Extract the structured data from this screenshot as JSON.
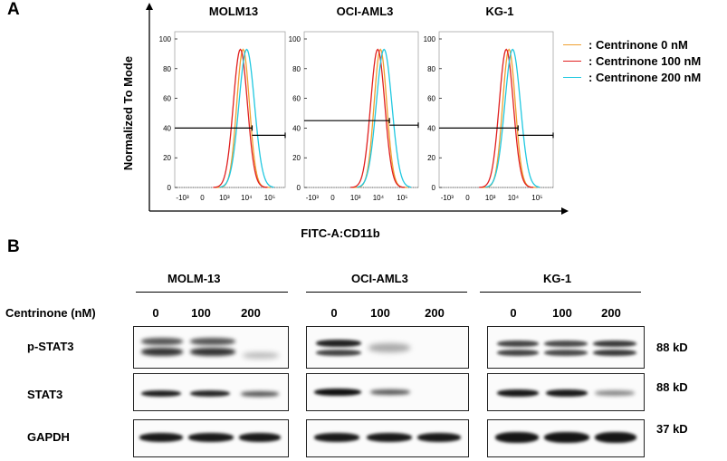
{
  "panel_a": {
    "letter": "A",
    "y_axis_label": "Normalized To Mode",
    "x_axis_label": "FITC-A:CD11b",
    "plots": [
      {
        "title": "MOLM13",
        "gate_marker": 40,
        "peak_x": 3.35
      },
      {
        "title": "OCI-AML3",
        "gate_marker": 45,
        "peak_x": 3.8
      },
      {
        "title": "KG-1",
        "gate_marker": 40,
        "peak_x": 3.3
      }
    ],
    "y_ticks": [
      "100",
      "80",
      "60",
      "40",
      "20",
      "0"
    ],
    "x_ticks": [
      "-10³",
      "0",
      "10³",
      "10⁴",
      "10⁵"
    ],
    "legend": [
      {
        "label": ": Centrinone  0 nM",
        "color": "#f0a030"
      },
      {
        "label": ": Centrinone  100 nM",
        "color": "#e02020"
      },
      {
        "label": ": Centrinone  200 nM",
        "color": "#20c8e0"
      }
    ]
  },
  "panel_b": {
    "letter": "B",
    "groups": [
      "MOLM-13",
      "OCI-AML3",
      "KG-1"
    ],
    "treatment_label": "Centrinone (nM)",
    "lanes": [
      "0",
      "100",
      "200"
    ],
    "rows": [
      {
        "label": "p-STAT3",
        "size": "88 kD"
      },
      {
        "label": "STAT3",
        "size": "88 kD"
      },
      {
        "label": "GAPDH",
        "size": "37 kD"
      }
    ]
  }
}
